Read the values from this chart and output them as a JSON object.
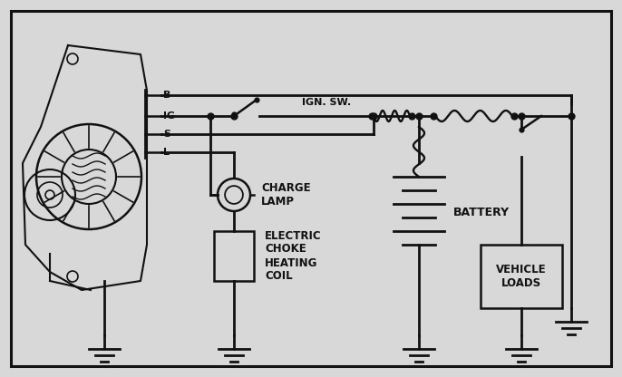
{
  "bg_color": "#d8d8d8",
  "diagram_bg": "#d8d8d8",
  "border_color": "#111111",
  "line_color": "#111111",
  "labels": {
    "B": "B",
    "IG": "IG",
    "S": "S",
    "L": "L",
    "IGN_SW": "IGN. SW.",
    "CHARGE_LAMP": "CHARGE\nLAMP",
    "ELECTRIC_CHOKE": "ELECTRIC\nCHOKE\nHEATING\nCOIL",
    "BATTERY": "BATTERY",
    "VEHICLE_LOADS": "VEHICLE\nLOADS"
  },
  "figsize": [
    6.86,
    4.16
  ],
  "dpi": 100,
  "xlim": [
    0,
    686
  ],
  "ylim": [
    0,
    416
  ]
}
